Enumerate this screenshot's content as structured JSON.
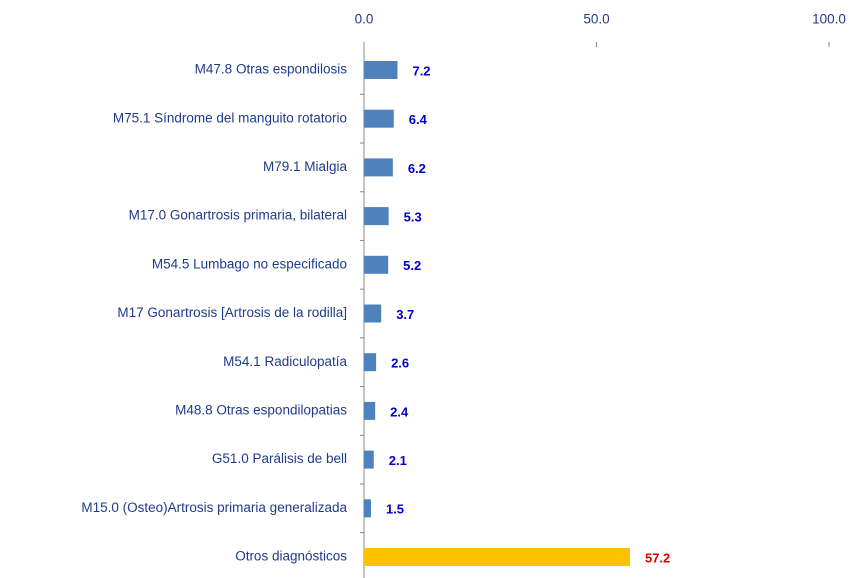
{
  "chart_data": {
    "type": "barh",
    "categories": [
      "M47.8  Otras espondilosis",
      "M75.1  Síndrome del manguito rotatorio",
      "M79.1 Mialgia",
      "M17.0  Gonartrosis primaria, bilateral",
      "M54.5 Lumbago no especificado",
      "M17  Gonartrosis [Artrosis de la rodilla]",
      "M54.1 Radiculopatía",
      "M48.8 Otras espondilopatias",
      "G51.0 Parálisis de bell",
      "M15.0  (Osteo)Artrosis primaria generalizada",
      "Otros diagnósticos"
    ],
    "values": [
      7.2,
      6.4,
      6.2,
      5.3,
      5.2,
      3.7,
      2.6,
      2.4,
      2.1,
      1.5,
      57.2
    ],
    "colors": [
      "#4f81bd",
      "#4f81bd",
      "#4f81bd",
      "#4f81bd",
      "#4f81bd",
      "#4f81bd",
      "#4f81bd",
      "#4f81bd",
      "#4f81bd",
      "#4f81bd",
      "#ffc000"
    ],
    "label_colors": [
      "#0000cc",
      "#0000cc",
      "#0000cc",
      "#0000cc",
      "#0000cc",
      "#0000cc",
      "#0000cc",
      "#0000cc",
      "#0000cc",
      "#0000cc",
      "#e00000"
    ],
    "xlim": [
      0,
      100
    ],
    "xticks": [
      {
        "value": 0,
        "label": "0.0"
      },
      {
        "value": 50,
        "label": "50.0"
      },
      {
        "value": 100,
        "label": "100.0"
      }
    ]
  }
}
